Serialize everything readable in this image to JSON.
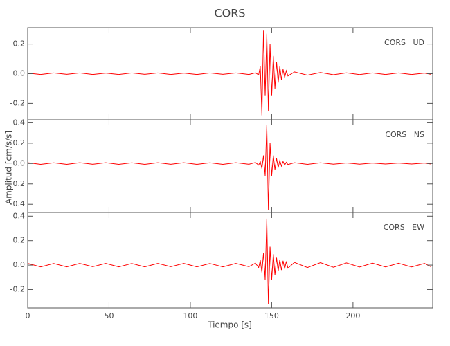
{
  "title": "CORS",
  "xlabel": "Tiempo [s]",
  "ylabel": "Amplitud [cm/s/s]",
  "chart_data": [
    {
      "type": "line",
      "annotation": "CORS   UD",
      "color": "#ff0000",
      "x": [
        0,
        8,
        16,
        24,
        32,
        40,
        48,
        56,
        64,
        72,
        80,
        88,
        96,
        104,
        112,
        120,
        128,
        136,
        140,
        142,
        143,
        144,
        145,
        146,
        147,
        148,
        149,
        150,
        151,
        152,
        153,
        154,
        155,
        156,
        157,
        158,
        159,
        160,
        164,
        172,
        180,
        188,
        196,
        204,
        212,
        220,
        228,
        236,
        244,
        248
      ],
      "values": [
        0.004,
        -0.005,
        0.005,
        -0.004,
        0.005,
        -0.005,
        0.004,
        -0.005,
        0.005,
        -0.004,
        0.005,
        -0.005,
        0.004,
        -0.005,
        0.005,
        -0.004,
        0.005,
        -0.005,
        0.006,
        -0.008,
        0.05,
        -0.28,
        0.29,
        -0.15,
        0.27,
        -0.25,
        0.2,
        -0.15,
        0.12,
        -0.1,
        0.08,
        -0.06,
        0.05,
        -0.04,
        0.03,
        -0.025,
        0.02,
        -0.015,
        0.012,
        -0.01,
        0.008,
        -0.007,
        0.006,
        -0.006,
        0.005,
        -0.005,
        0.005,
        -0.005,
        0.004,
        -0.004
      ],
      "xlim": [
        0,
        249
      ],
      "xticks": [
        0,
        50,
        100,
        150,
        200
      ],
      "ylim": [
        -0.31,
        0.31
      ],
      "yticks": [
        -0.2,
        {
          "value": 0,
          "label": "0.0"
        },
        0.2
      ]
    },
    {
      "type": "line",
      "annotation": "CORS   NS",
      "color": "#ff0000",
      "x": [
        0,
        8,
        16,
        24,
        32,
        40,
        48,
        56,
        64,
        72,
        80,
        88,
        96,
        104,
        112,
        120,
        128,
        136,
        140,
        142,
        143,
        144,
        145,
        146,
        147,
        148,
        149,
        150,
        151,
        152,
        153,
        154,
        155,
        156,
        157,
        158,
        159,
        160,
        164,
        172,
        180,
        188,
        196,
        204,
        212,
        220,
        228,
        236,
        244,
        248
      ],
      "values": [
        0.008,
        -0.008,
        0.007,
        -0.008,
        0.008,
        -0.007,
        0.008,
        -0.008,
        0.007,
        -0.008,
        0.008,
        -0.007,
        0.008,
        -0.008,
        0.007,
        -0.008,
        0.008,
        -0.007,
        0.01,
        -0.015,
        0.02,
        -0.05,
        0.08,
        -0.12,
        0.38,
        -0.46,
        0.2,
        -0.12,
        0.08,
        -0.06,
        0.05,
        -0.04,
        0.03,
        -0.025,
        0.02,
        -0.015,
        0.012,
        -0.01,
        0.008,
        -0.008,
        0.007,
        -0.006,
        0.006,
        -0.006,
        0.005,
        -0.005,
        0.005,
        -0.005,
        0.005,
        -0.005
      ],
      "xlim": [
        0,
        249
      ],
      "xticks": [
        0,
        50,
        100,
        150,
        200
      ],
      "ylim": [
        -0.48,
        0.43
      ],
      "yticks": [
        -0.4,
        -0.2,
        {
          "value": 0,
          "label": "0.0"
        },
        0.2,
        0.4
      ]
    },
    {
      "type": "line",
      "annotation": "CORS   EW",
      "color": "#ff0000",
      "x": [
        0,
        8,
        16,
        24,
        32,
        40,
        48,
        56,
        64,
        72,
        80,
        88,
        96,
        104,
        112,
        120,
        128,
        136,
        140,
        142,
        143,
        144,
        145,
        146,
        147,
        148,
        149,
        150,
        151,
        152,
        153,
        154,
        155,
        156,
        157,
        158,
        159,
        160,
        164,
        172,
        180,
        188,
        196,
        204,
        212,
        220,
        228,
        236,
        244,
        248
      ],
      "values": [
        0.014,
        -0.014,
        0.013,
        -0.014,
        0.014,
        -0.013,
        0.014,
        -0.014,
        0.013,
        -0.014,
        0.014,
        -0.013,
        0.014,
        -0.014,
        0.013,
        -0.014,
        0.014,
        -0.013,
        0.016,
        -0.02,
        0.04,
        -0.06,
        0.1,
        -0.12,
        0.38,
        -0.32,
        0.15,
        -0.12,
        0.09,
        -0.08,
        0.06,
        -0.05,
        0.045,
        -0.04,
        0.035,
        -0.03,
        0.03,
        -0.025,
        0.022,
        -0.02,
        0.02,
        -0.018,
        0.018,
        -0.016,
        0.016,
        -0.015,
        0.015,
        -0.015,
        0.014,
        -0.014
      ],
      "xlim": [
        0,
        249
      ],
      "xticks": [
        0,
        50,
        100,
        150,
        200
      ],
      "ylim": [
        -0.35,
        0.43
      ],
      "yticks": [
        -0.2,
        {
          "value": 0,
          "label": "0.0"
        },
        0.2,
        0.4
      ]
    }
  ]
}
